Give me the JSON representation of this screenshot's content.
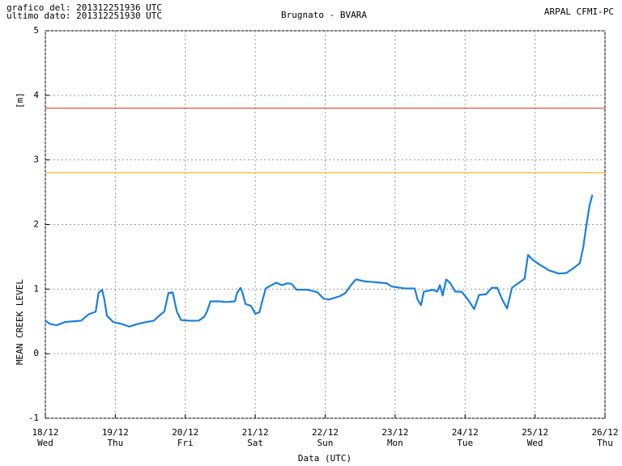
{
  "chart_data": {
    "type": "line",
    "header_left": [
      "grafico del: 201312251936 UTC",
      "ultimo dato: 201312251930 UTC"
    ],
    "title": "Brugnato - BVARA",
    "header_right": "ARPAL CFMI-PC",
    "y_label": "MEAN CREEK LEVEL",
    "y_unit": "[m]",
    "x_label": "Data (UTC)",
    "xlim": [
      0,
      8
    ],
    "xticks": [
      {
        "value": 0,
        "label": "18/12"
      },
      {
        "value": 1,
        "label": "19/12"
      },
      {
        "value": 2,
        "label": "20/12"
      },
      {
        "value": 3,
        "label": "21/12"
      },
      {
        "value": 4,
        "label": "22/12"
      },
      {
        "value": 5,
        "label": "23/12"
      },
      {
        "value": 6,
        "label": "24/12"
      },
      {
        "value": 7,
        "label": "25/12"
      },
      {
        "value": 8,
        "label": "26/12"
      }
    ],
    "xtick_days": [
      "Wed",
      "Thu",
      "Fri",
      "Sat",
      "Sun",
      "Mon",
      "Tue",
      "Wed",
      "Thu"
    ],
    "ylim": [
      -1,
      5
    ],
    "yticks": [
      -1,
      0,
      1,
      2,
      3,
      4,
      5
    ],
    "grid": true,
    "thresholds": [
      {
        "value": 3.8,
        "color": "#e02020"
      },
      {
        "value": 2.8,
        "color": "#f0b000"
      }
    ],
    "x": [
      0,
      0.07,
      0.16,
      0.28,
      0.39,
      0.51,
      0.62,
      0.72,
      0.76,
      0.81,
      0.84,
      0.88,
      0.97,
      1.09,
      1.2,
      1.32,
      1.44,
      1.55,
      1.64,
      1.7,
      1.76,
      1.82,
      1.88,
      1.94,
      2.07,
      2.19,
      2.27,
      2.31,
      2.36,
      2.48,
      2.59,
      2.71,
      2.74,
      2.79,
      2.82,
      2.86,
      2.94,
      3.0,
      3.06,
      3.1,
      3.15,
      3.23,
      3.3,
      3.38,
      3.46,
      3.52,
      3.59,
      3.75,
      3.89,
      3.98,
      4.06,
      4.21,
      4.29,
      4.36,
      4.44,
      4.56,
      4.68,
      4.79,
      4.88,
      4.95,
      5.14,
      5.28,
      5.32,
      5.37,
      5.41,
      5.54,
      5.6,
      5.64,
      5.68,
      5.73,
      5.79,
      5.86,
      5.95,
      6.04,
      6.13,
      6.2,
      6.3,
      6.38,
      6.46,
      6.53,
      6.6,
      6.67,
      6.76,
      6.85,
      6.9,
      6.96,
      7.05,
      7.2,
      7.34,
      7.45,
      7.57,
      7.64,
      7.69,
      7.73,
      7.78,
      7.82
    ],
    "series": [
      {
        "color": "#1a7fe0",
        "values": [
          0.51,
          0.46,
          0.44,
          0.49,
          0.5,
          0.51,
          0.61,
          0.65,
          0.94,
          0.99,
          0.86,
          0.59,
          0.49,
          0.46,
          0.42,
          0.46,
          0.49,
          0.51,
          0.6,
          0.65,
          0.94,
          0.95,
          0.65,
          0.52,
          0.51,
          0.51,
          0.57,
          0.65,
          0.81,
          0.81,
          0.8,
          0.81,
          0.94,
          1.02,
          0.94,
          0.77,
          0.74,
          0.62,
          0.64,
          0.81,
          1.01,
          1.06,
          1.1,
          1.06,
          1.09,
          1.08,
          0.99,
          0.99,
          0.95,
          0.85,
          0.84,
          0.89,
          0.94,
          1.05,
          1.15,
          1.12,
          1.11,
          1.1,
          1.09,
          1.04,
          1.01,
          1.01,
          0.84,
          0.75,
          0.96,
          0.99,
          0.96,
          1.06,
          0.9,
          1.15,
          1.09,
          0.96,
          0.96,
          0.84,
          0.69,
          0.91,
          0.92,
          1.02,
          1.02,
          0.84,
          0.7,
          1.02,
          1.09,
          1.16,
          1.53,
          1.46,
          1.39,
          1.29,
          1.24,
          1.25,
          1.34,
          1.4,
          1.65,
          1.96,
          2.3,
          2.46
        ]
      }
    ]
  }
}
